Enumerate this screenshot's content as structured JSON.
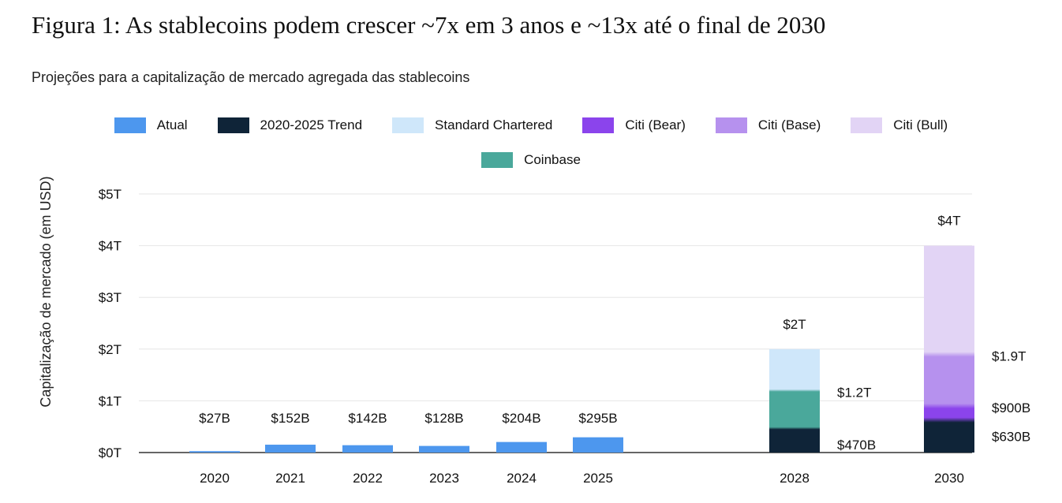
{
  "title": "Figura 1: As stablecoins podem crescer ~7x em 3 anos e ~13x até o final de 2030",
  "subtitle": "Projeções para a capitalização de mercado agregada das stablecoins",
  "chart_data": {
    "type": "bar",
    "ylabel": "Capitalização de mercado (em USD)",
    "ylim": [
      0,
      5
    ],
    "yticks": [
      {
        "value": 0,
        "label": "$0T"
      },
      {
        "value": 1,
        "label": "$1T"
      },
      {
        "value": 2,
        "label": "$2T"
      },
      {
        "value": 3,
        "label": "$3T"
      },
      {
        "value": 4,
        "label": "$4T"
      },
      {
        "value": 5,
        "label": "$5T"
      }
    ],
    "grid": true,
    "legend_position": "top",
    "legend": [
      {
        "name": "Atual",
        "color": "#4d97ee"
      },
      {
        "name": "2020-2025 Trend",
        "color": "#0f2438"
      },
      {
        "name": "Standard Chartered",
        "color": "#cfe7fa"
      },
      {
        "name": "Citi (Bear)",
        "color": "#8b44ec"
      },
      {
        "name": "Citi (Base)",
        "color": "#b691ee"
      },
      {
        "name": "Citi (Bull)",
        "color": "#e2d4f5"
      },
      {
        "name": "Coinbase",
        "color": "#4aa89b"
      }
    ],
    "actual": [
      {
        "year": "2020",
        "value": 0.027,
        "label": "$27B"
      },
      {
        "year": "2021",
        "value": 0.152,
        "label": "$152B"
      },
      {
        "year": "2022",
        "value": 0.142,
        "label": "$142B"
      },
      {
        "year": "2023",
        "value": 0.128,
        "label": "$128B"
      },
      {
        "year": "2024",
        "value": 0.204,
        "label": "$204B"
      },
      {
        "year": "2025",
        "value": 0.295,
        "label": "$295B"
      }
    ],
    "projections": [
      {
        "year": "2028",
        "total_label": "$2T",
        "segments": [
          {
            "series": "2020-2025 Trend",
            "from": 0,
            "to": 0.47,
            "label": "$470B",
            "color": "#0f2438"
          },
          {
            "series": "Coinbase",
            "from": 0.47,
            "to": 1.2,
            "label": "$1.2T",
            "color": "#4aa89b"
          },
          {
            "series": "Standard Chartered",
            "from": 1.2,
            "to": 2.0,
            "label": "",
            "color": "#cfe7fa"
          }
        ]
      },
      {
        "year": "2030",
        "total_label": "$4T",
        "segments": [
          {
            "series": "2020-2025 Trend",
            "from": 0,
            "to": 0.63,
            "label": "$630B",
            "color": "#0f2438"
          },
          {
            "series": "Citi (Bear)",
            "from": 0.63,
            "to": 0.9,
            "label": "$900B",
            "color": "#8b44ec"
          },
          {
            "series": "Citi (Base)",
            "from": 0.9,
            "to": 1.9,
            "label": "$1.9T",
            "color": "#b691ee"
          },
          {
            "series": "Citi (Bull)",
            "from": 1.9,
            "to": 4.0,
            "label": "",
            "color": "#e2d4f5"
          }
        ]
      }
    ]
  }
}
